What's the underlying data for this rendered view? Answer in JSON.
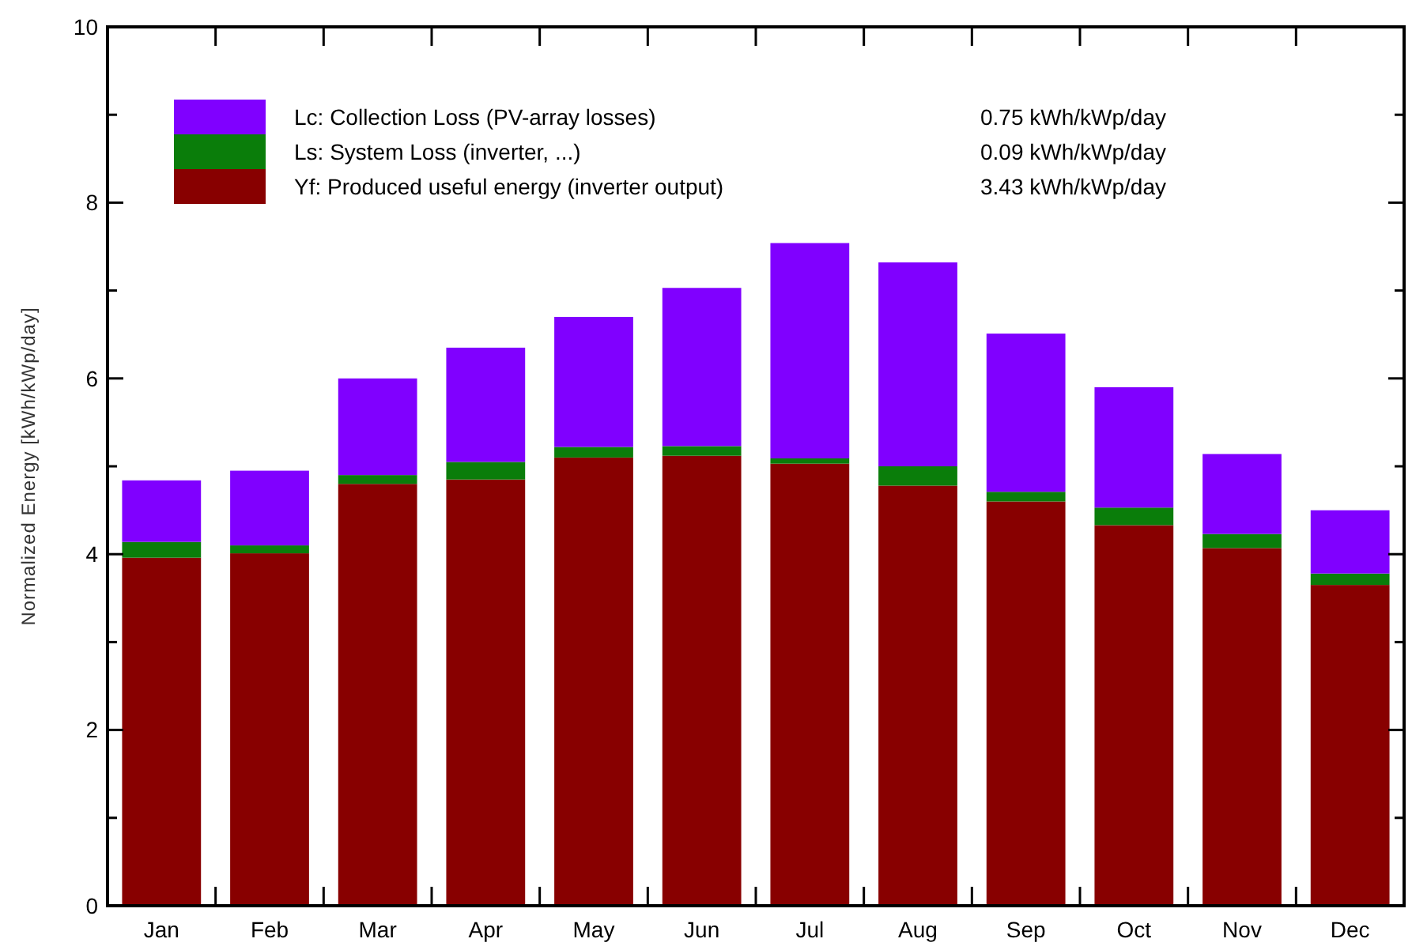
{
  "chart_data": {
    "type": "bar",
    "stacked": true,
    "ylabel": "Normalized Energy [kWh/kWp/day]",
    "categories": [
      "Jan",
      "Feb",
      "Mar",
      "Apr",
      "May",
      "Jun",
      "Jul",
      "Aug",
      "Sep",
      "Oct",
      "Nov",
      "Dec"
    ],
    "series": [
      {
        "name": "Yf: Produced useful energy  (inverter output)",
        "color": "#880000",
        "values": [
          3.96,
          4.01,
          4.8,
          4.85,
          5.1,
          5.12,
          5.03,
          4.78,
          4.6,
          4.33,
          4.07,
          3.65
        ]
      },
      {
        "name": "Ls: System Loss  (inverter, ...)",
        "color": "#0a7d0a",
        "values": [
          0.18,
          0.09,
          0.1,
          0.2,
          0.12,
          0.11,
          0.06,
          0.22,
          0.11,
          0.2,
          0.16,
          0.13
        ]
      },
      {
        "name": "Lc: Collection Loss (PV-array losses)",
        "color": "#8000ff",
        "values": [
          0.7,
          0.85,
          1.1,
          1.3,
          1.48,
          1.8,
          2.45,
          2.32,
          1.8,
          1.37,
          0.91,
          0.72
        ]
      }
    ],
    "annotations": [
      "3.43 kWh/kWp/day",
      "0.09  kWh/kWp/day",
      "0.75 kWh/kWp/day"
    ],
    "ylim": [
      0,
      10
    ],
    "yticks": [
      0,
      {
        "value": 1,
        "label": null
      },
      2,
      {
        "value": 3,
        "label": null
      },
      4,
      {
        "value": 5,
        "label": null
      },
      6,
      {
        "value": 7,
        "label": null
      },
      8,
      {
        "value": 9,
        "label": null
      },
      10
    ],
    "legend": "top left"
  }
}
